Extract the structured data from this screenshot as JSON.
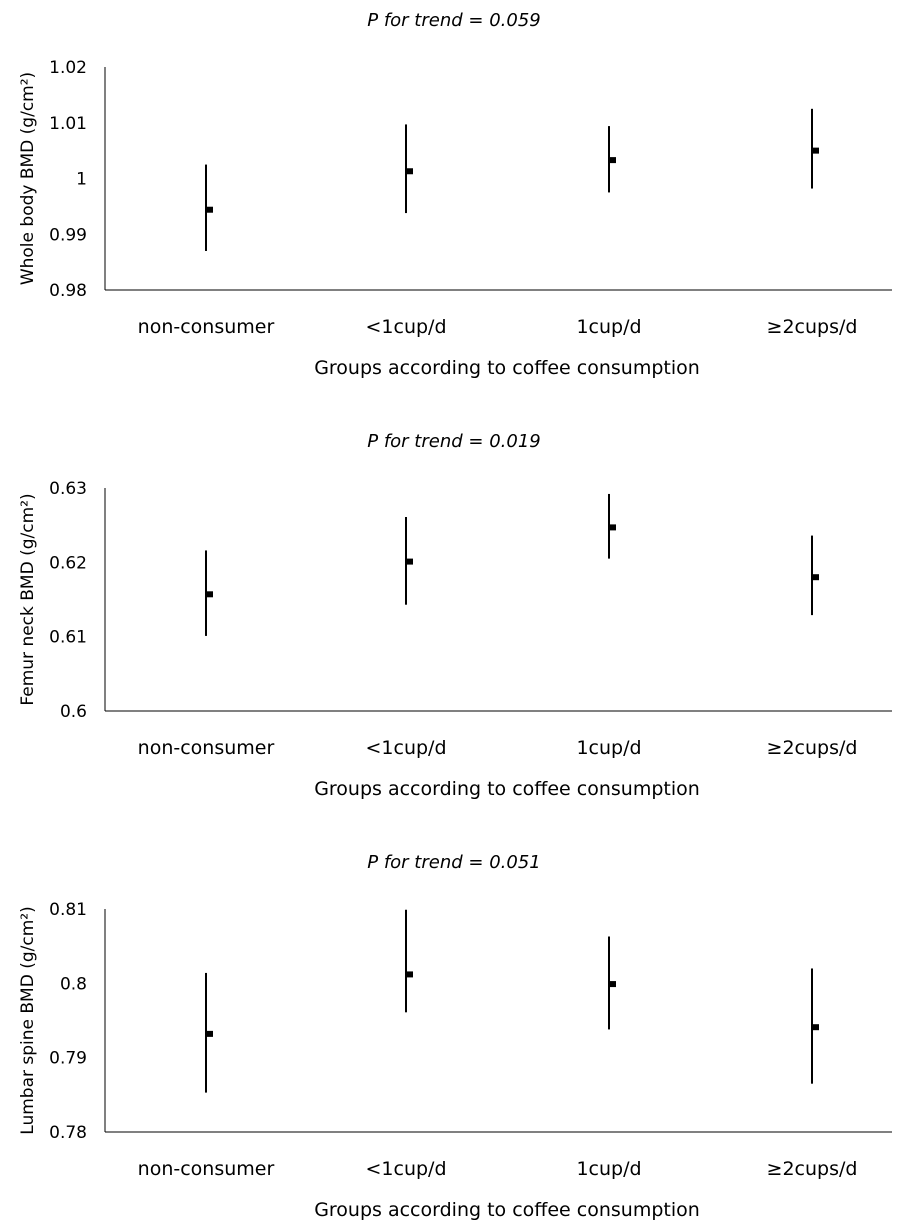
{
  "chart_data": [
    {
      "type": "scatter",
      "title": "P for trend = 0.059",
      "xlabel": "Groups according to coffee consumption",
      "ylabel": "Whole body BMD (g/cm²)",
      "categories": [
        "non-consumer",
        "<1cup/d",
        "1cup/d",
        "≥2cups/d"
      ],
      "yticks": [
        "0.98",
        "0.99",
        "1",
        "1.01",
        "1.02"
      ],
      "ylim": [
        0.98,
        1.02
      ],
      "grid": false,
      "series": [
        {
          "values": [
            0.9944,
            1.0013,
            1.0033,
            1.005
          ],
          "lower": [
            0.987,
            0.9938,
            0.9975,
            0.9982
          ],
          "upper": [
            1.0025,
            1.0097,
            1.0094,
            1.0125
          ]
        }
      ]
    },
    {
      "type": "scatter",
      "title": "P for trend = 0.019",
      "xlabel": "Groups according to coffee consumption",
      "ylabel": "Femur neck BMD (g/cm²)",
      "categories": [
        "non-consumer",
        "<1cup/d",
        "1cup/d",
        "≥2cups/d"
      ],
      "yticks": [
        "0.6",
        "0.61",
        "0.62",
        "0.63"
      ],
      "ylim": [
        0.6,
        0.63
      ],
      "grid": false,
      "series": [
        {
          "values": [
            0.6157,
            0.6201,
            0.6247,
            0.618
          ],
          "lower": [
            0.6101,
            0.6143,
            0.6205,
            0.6129
          ],
          "upper": [
            0.6216,
            0.6261,
            0.6292,
            0.6236
          ]
        }
      ]
    },
    {
      "type": "scatter",
      "title": "P for trend = 0.051",
      "xlabel": "Groups according to coffee consumption",
      "ylabel": "Lumbar spine BMD (g/cm²)",
      "categories": [
        "non-consumer",
        "<1cup/d",
        "1cup/d",
        "≥2cups/d"
      ],
      "yticks": [
        "0.78",
        "0.79",
        "0.8",
        "0.81"
      ],
      "ylim": [
        0.78,
        0.81
      ],
      "grid": false,
      "series": [
        {
          "values": [
            0.7932,
            0.8012,
            0.7999,
            0.7941
          ],
          "lower": [
            0.7853,
            0.7961,
            0.7938,
            0.7865
          ],
          "upper": [
            0.8014,
            0.8099,
            0.8063,
            0.802
          ]
        }
      ]
    }
  ]
}
